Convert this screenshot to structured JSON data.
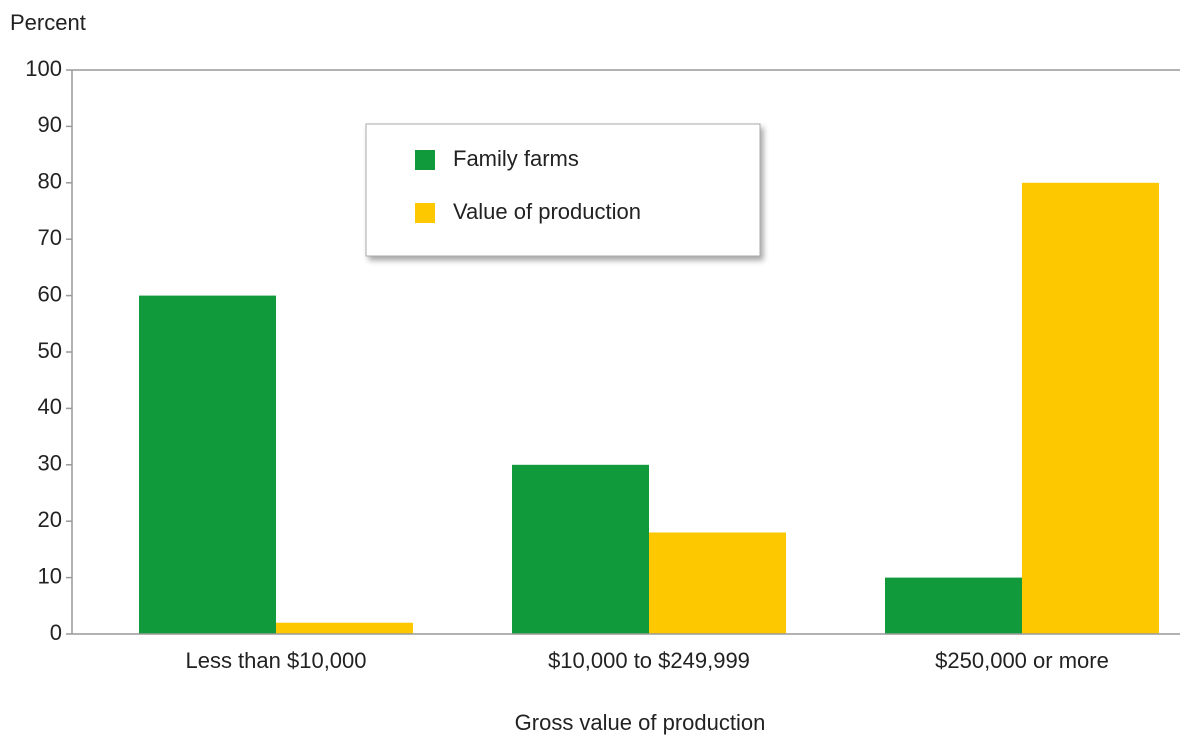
{
  "chart_data": {
    "type": "bar",
    "y_axis_label": "Percent",
    "x_axis_label": "Gross value of production",
    "categories": [
      "Less than $10,000",
      "$10,000 to $249,999",
      "$250,000 or more"
    ],
    "series": [
      {
        "name": "Family farms",
        "color": "#119a3b",
        "values": [
          60,
          30,
          10
        ]
      },
      {
        "name": "Value of production",
        "color": "#fdc800",
        "values": [
          2,
          18,
          80
        ]
      }
    ],
    "ylim": [
      0,
      100
    ],
    "yticks": [
      0,
      10,
      20,
      30,
      40,
      50,
      60,
      70,
      80,
      90,
      100
    ],
    "grid": false,
    "legend": "upper-center"
  }
}
